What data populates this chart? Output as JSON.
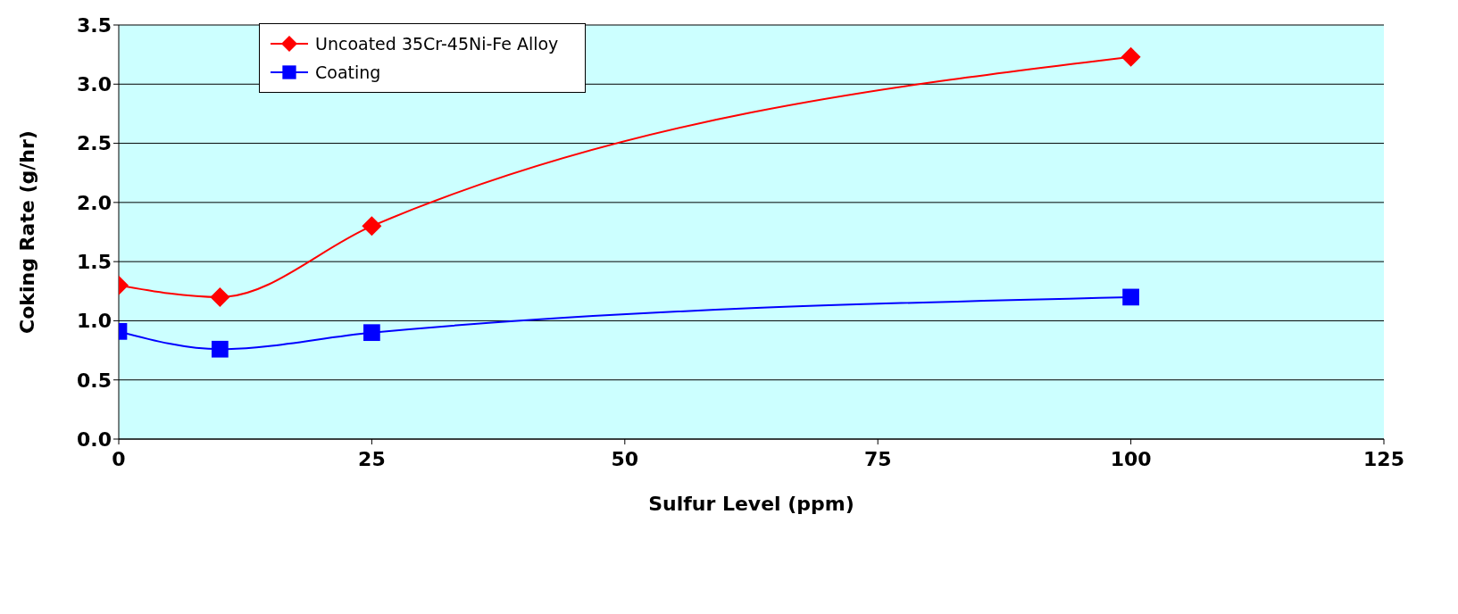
{
  "chart_data": {
    "type": "line",
    "xlabel": "Sulfur Level (ppm)",
    "ylabel": "Coking Rate (g/hr)",
    "x": [
      0,
      10,
      25,
      100
    ],
    "series": [
      {
        "name": "Uncoated 35Cr-45Ni-Fe Alloy",
        "color": "#ff0000",
        "marker": "diamond",
        "values": [
          1.3,
          1.2,
          1.8,
          3.23
        ]
      },
      {
        "name": "Coating",
        "color": "#0000ff",
        "marker": "square",
        "values": [
          0.91,
          0.76,
          0.9,
          1.2
        ]
      }
    ],
    "xlim": [
      0,
      125
    ],
    "xticks": [
      0,
      25,
      50,
      75,
      100,
      125
    ],
    "ylim": [
      0,
      3.5
    ],
    "yticks": [
      {
        "value": 0,
        "label": "0.0"
      },
      {
        "value": 0.5,
        "label": "0.5"
      },
      {
        "value": 1,
        "label": "1.0"
      },
      {
        "value": 1.5,
        "label": "1.5"
      },
      {
        "value": 2,
        "label": "2.0"
      },
      {
        "value": 2.5,
        "label": "2.5"
      },
      {
        "value": 3,
        "label": "3.0"
      },
      {
        "value": 3.5,
        "label": "3.5"
      }
    ],
    "grid": "y",
    "legend": "top left",
    "line_style": "solid"
  }
}
